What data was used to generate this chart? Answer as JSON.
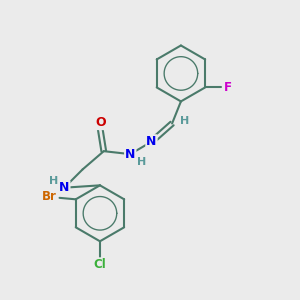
{
  "background_color": "#ebebeb",
  "bond_color": "#4a7a6a",
  "bond_width": 1.5,
  "atom_colors": {
    "F": "#cc00cc",
    "N": "#0000ee",
    "O": "#cc0000",
    "Br": "#cc6600",
    "Cl": "#3ab03a",
    "H": "#5a9a9a",
    "C": "#4a7a6a"
  },
  "figsize": [
    3.0,
    3.0
  ],
  "dpi": 100
}
